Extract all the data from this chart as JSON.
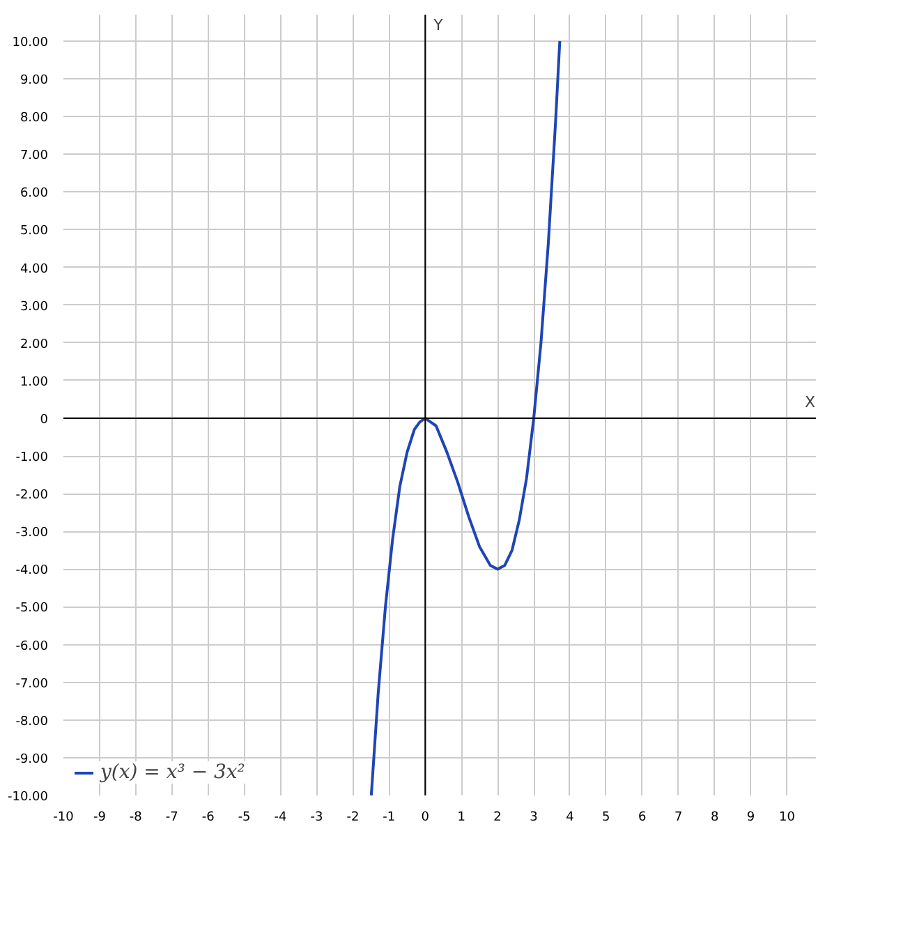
{
  "chart_data": {
    "type": "line",
    "xlabel": "X",
    "ylabel": "Y",
    "x": [
      -1.49,
      -1.3,
      -1.1,
      -0.9,
      -0.7,
      -0.5,
      -0.3,
      -0.15,
      0,
      0.15,
      0.3,
      0.6,
      0.9,
      1.2,
      1.5,
      1.8,
      2.0,
      2.2,
      2.4,
      2.6,
      2.8,
      3.0,
      3.2,
      3.4,
      3.6,
      3.72
    ],
    "series": [
      {
        "name": "y(x) = x³ − 3x²",
        "color": "#1f45b5",
        "values": [
          -10,
          -7.3,
          -5,
          -3.2,
          -1.8,
          -0.9,
          -0.3,
          -0.1,
          0,
          -0.1,
          -0.2,
          -0.9,
          -1.7,
          -2.6,
          -3.4,
          -3.9,
          -4,
          -3.9,
          -3.5,
          -2.7,
          -1.6,
          0,
          2,
          4.6,
          7.8,
          10
        ]
      }
    ],
    "xlim": [
      -10,
      10.8
    ],
    "ylim": [
      -10,
      10.7
    ],
    "xticks": [
      -10,
      -9,
      -8,
      -7,
      -6,
      -5,
      -4,
      -3,
      -2,
      -1,
      0,
      1,
      2,
      3,
      4,
      5,
      6,
      7,
      8,
      9,
      10
    ],
    "yticks": [
      {
        "value": 10,
        "label": "10.00"
      },
      {
        "value": 9,
        "label": "9.00"
      },
      {
        "value": 8,
        "label": "8.00"
      },
      {
        "value": 7,
        "label": "7.00"
      },
      {
        "value": 6,
        "label": "6.00"
      },
      {
        "value": 5,
        "label": "5.00"
      },
      {
        "value": 4,
        "label": "4.00"
      },
      {
        "value": 3,
        "label": "3.00"
      },
      {
        "value": 2,
        "label": "2.00"
      },
      {
        "value": 1,
        "label": "1.00"
      },
      {
        "value": 0,
        "label": "0"
      },
      {
        "value": -1,
        "label": "-1.00"
      },
      {
        "value": -2,
        "label": "-2.00"
      },
      {
        "value": -3,
        "label": "-3.00"
      },
      {
        "value": -4,
        "label": "-4.00"
      },
      {
        "value": -5,
        "label": "-5.00"
      },
      {
        "value": -6,
        "label": "-6.00"
      },
      {
        "value": -7,
        "label": "-7.00"
      },
      {
        "value": -8,
        "label": "-8.00"
      },
      {
        "value": -9,
        "label": "-9.00"
      },
      {
        "value": -10,
        "label": "-10.00"
      }
    ],
    "grid": true,
    "legend": "bottom left",
    "marker": "none",
    "line_style": "solid"
  }
}
